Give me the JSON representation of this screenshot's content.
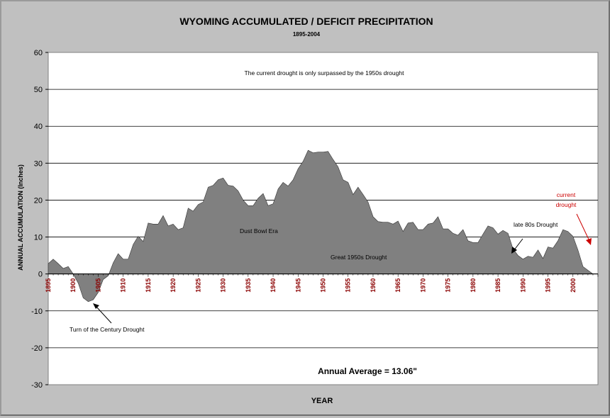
{
  "chart_data": {
    "type": "area",
    "title": "WYOMING ACCUMULATED / DEFICIT PRECIPITATION",
    "subtitle": "1895-2004",
    "xlabel": "YEAR",
    "ylabel": "ANNUAL ACCUMULATION (Inches)",
    "ylim": [
      -30,
      60
    ],
    "yticks": [
      60,
      50,
      40,
      30,
      20,
      10,
      0,
      -10,
      -20,
      -30
    ],
    "xlim": [
      1895,
      2005
    ],
    "xticks": [
      1895,
      1900,
      1905,
      1910,
      1915,
      1920,
      1925,
      1930,
      1935,
      1940,
      1945,
      1950,
      1955,
      1960,
      1965,
      1970,
      1975,
      1980,
      1985,
      1990,
      1995,
      2000
    ],
    "grid": "horizontal",
    "fill_color": "#808080",
    "tick_label_color": "#8b0000",
    "series": [
      {
        "x": [
          1895,
          1896,
          1897,
          1898,
          1899,
          1900,
          1901,
          1902,
          1903,
          1904,
          1905,
          1906,
          1907,
          1908,
          1909,
          1910,
          1911,
          1912,
          1913,
          1914,
          1915,
          1916,
          1917,
          1918,
          1919,
          1920,
          1921,
          1922,
          1923,
          1924,
          1925,
          1926,
          1927,
          1928,
          1929,
          1930,
          1931,
          1932,
          1933,
          1934,
          1935,
          1936,
          1937,
          1938,
          1939,
          1940,
          1941,
          1942,
          1943,
          1944,
          1945,
          1946,
          1947,
          1948,
          1949,
          1950,
          1951,
          1952,
          1953,
          1954,
          1955,
          1956,
          1957,
          1958,
          1959,
          1960,
          1961,
          1962,
          1963,
          1964,
          1965,
          1966,
          1967,
          1968,
          1969,
          1970,
          1971,
          1972,
          1973,
          1974,
          1975,
          1976,
          1977,
          1978,
          1979,
          1980,
          1981,
          1982,
          1983,
          1984,
          1985,
          1986,
          1987,
          1988,
          1989,
          1990,
          1991,
          1992,
          1993,
          1994,
          1995,
          1996,
          1997,
          1998,
          1999,
          2000,
          2001,
          2002,
          2003,
          2004
        ],
        "values": [
          2.8,
          4.0,
          2.8,
          1.5,
          2.0,
          0.0,
          -2.5,
          -6.5,
          -7.5,
          -7.0,
          -5.0,
          -1.5,
          -0.5,
          3.0,
          5.5,
          4.0,
          4.0,
          8.0,
          10.2,
          8.8,
          13.8,
          13.5,
          13.5,
          15.8,
          13.0,
          13.5,
          12.0,
          12.5,
          17.8,
          17.0,
          18.8,
          19.5,
          23.5,
          24.0,
          25.5,
          26.0,
          24.0,
          23.8,
          22.5,
          20.0,
          18.5,
          18.5,
          20.5,
          21.8,
          18.5,
          19.0,
          23.0,
          24.8,
          23.8,
          25.5,
          28.5,
          30.5,
          33.5,
          32.8,
          33.0,
          33.0,
          33.2,
          31.0,
          29.0,
          25.5,
          24.8,
          21.5,
          23.5,
          21.5,
          19.5,
          15.5,
          14.2,
          14.0,
          14.0,
          13.5,
          14.3,
          11.5,
          13.8,
          14.0,
          12.0,
          12.0,
          13.5,
          13.8,
          15.5,
          12.2,
          12.2,
          11.0,
          10.5,
          12.0,
          9.0,
          8.5,
          8.5,
          10.8,
          13.0,
          12.5,
          10.8,
          11.8,
          11.0,
          6.8,
          5.0,
          4.0,
          4.8,
          4.5,
          6.5,
          4.2,
          7.3,
          7.0,
          9.0,
          12.0,
          11.5,
          10.2,
          6.5,
          2.0,
          1.0,
          0.0
        ]
      }
    ],
    "annotations": {
      "top_note": "The current drought is only surpassed by the 1950s drought",
      "dust_bowl": "Dust Bowl Era",
      "great_1950s": "Great 1950s Drought",
      "late_80s": "late 80s Drought",
      "current_line1": "current",
      "current_line2": "drought",
      "turn_of_century": "Turn of the Century Drought",
      "average": "Annual Average = 13.06\""
    },
    "annotation_colors": {
      "current_drought": "#cc0000"
    }
  }
}
